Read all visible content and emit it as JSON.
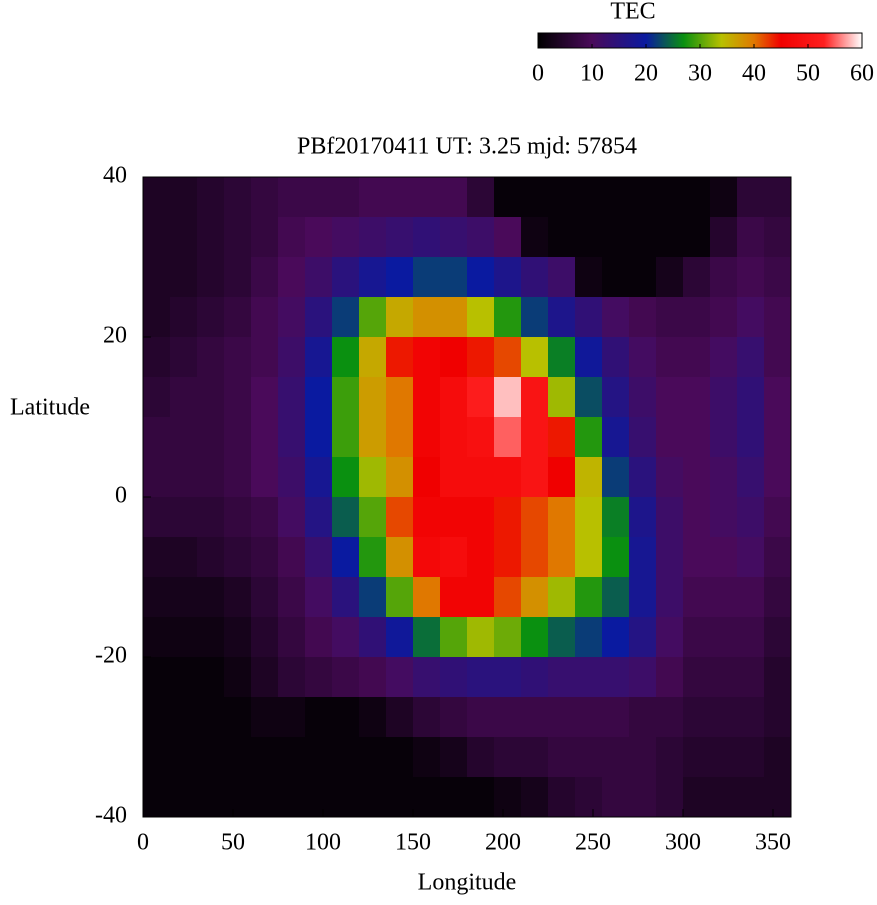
{
  "chart_data": {
    "type": "heatmap",
    "title": "PBf20170411  UT: 3.25  mjd: 57854",
    "xlabel": "Longitude",
    "ylabel": "Latitude",
    "xlim": [
      0,
      360
    ],
    "ylim": [
      -40,
      40
    ],
    "xticks": [
      0,
      50,
      100,
      150,
      200,
      250,
      300,
      350
    ],
    "yticks": [
      -40,
      -20,
      0,
      20,
      40
    ],
    "x": [
      7.5,
      22.5,
      37.5,
      52.5,
      67.5,
      82.5,
      97.5,
      112.5,
      127.5,
      142.5,
      157.5,
      172.5,
      187.5,
      202.5,
      217.5,
      232.5,
      247.5,
      262.5,
      277.5,
      292.5,
      307.5,
      322.5,
      337.5,
      352.5
    ],
    "y": [
      37.5,
      32.5,
      27.5,
      22.5,
      17.5,
      12.5,
      7.5,
      2.5,
      -2.5,
      -7.5,
      -12.5,
      -17.5,
      -22.5,
      -27.5,
      -32.5,
      -37.5
    ],
    "z": [
      [
        4,
        4,
        5,
        6,
        7,
        8,
        8,
        8,
        9,
        9,
        9,
        9,
        6,
        1,
        1,
        1,
        1,
        1,
        1,
        1,
        1,
        2,
        6,
        6
      ],
      [
        4,
        4,
        5,
        6,
        7,
        9,
        10,
        11,
        12,
        13,
        14,
        13,
        12,
        10,
        2,
        1,
        1,
        1,
        1,
        1,
        1,
        5,
        8,
        7
      ],
      [
        4,
        4,
        5,
        6,
        8,
        10,
        12,
        15,
        18,
        20,
        22,
        22,
        20,
        17,
        14,
        12,
        2,
        1,
        1,
        3,
        6,
        8,
        9,
        8
      ],
      [
        4,
        5,
        6,
        7,
        9,
        11,
        15,
        22,
        30,
        36,
        38,
        38,
        34,
        28,
        22,
        17,
        14,
        11,
        9,
        8,
        8,
        9,
        11,
        9
      ],
      [
        5,
        6,
        7,
        8,
        9,
        12,
        18,
        27,
        36,
        44,
        46,
        45,
        44,
        42,
        34,
        26,
        19,
        14,
        11,
        9,
        9,
        11,
        13,
        9
      ],
      [
        6,
        7,
        7,
        8,
        10,
        13,
        20,
        29,
        37,
        40,
        46,
        48,
        52,
        58,
        50,
        33,
        23,
        16,
        12,
        10,
        10,
        12,
        14,
        10
      ],
      [
        7,
        7,
        7,
        8,
        10,
        13,
        20,
        29,
        37,
        40,
        46,
        48,
        49,
        55,
        50,
        44,
        28,
        18,
        13,
        10,
        10,
        12,
        14,
        10
      ],
      [
        7,
        7,
        7,
        8,
        10,
        12,
        18,
        27,
        33,
        38,
        45,
        48,
        48,
        48,
        50,
        45,
        35,
        22,
        15,
        11,
        10,
        11,
        13,
        10
      ],
      [
        6,
        6,
        6,
        7,
        8,
        11,
        16,
        24,
        30,
        42,
        46,
        46,
        46,
        44,
        42,
        40,
        34,
        26,
        17,
        12,
        10,
        11,
        12,
        9
      ],
      [
        4,
        4,
        5,
        6,
        7,
        9,
        13,
        20,
        28,
        38,
        47,
        48,
        46,
        44,
        42,
        40,
        34,
        27,
        18,
        12,
        10,
        10,
        11,
        8
      ],
      [
        3,
        3,
        3,
        4,
        6,
        8,
        11,
        15,
        22,
        30,
        40,
        46,
        46,
        42,
        38,
        33,
        28,
        24,
        18,
        12,
        9,
        9,
        9,
        7
      ],
      [
        2,
        2,
        2,
        3,
        5,
        7,
        9,
        11,
        14,
        19,
        25,
        30,
        33,
        31,
        27,
        24,
        22,
        20,
        16,
        11,
        8,
        8,
        8,
        6
      ],
      [
        1,
        1,
        1,
        2,
        4,
        6,
        7,
        8,
        9,
        11,
        13,
        14,
        15,
        15,
        14,
        13,
        13,
        13,
        12,
        9,
        7,
        7,
        7,
        5
      ],
      [
        1,
        1,
        1,
        1,
        2,
        2,
        1,
        1,
        2,
        4,
        6,
        7,
        8,
        8,
        8,
        8,
        8,
        8,
        7,
        7,
        6,
        6,
        6,
        5
      ],
      [
        1,
        1,
        1,
        1,
        1,
        1,
        1,
        1,
        1,
        1,
        2,
        3,
        5,
        6,
        6,
        7,
        7,
        7,
        7,
        6,
        5,
        5,
        5,
        4
      ],
      [
        1,
        1,
        1,
        1,
        1,
        1,
        1,
        1,
        1,
        1,
        1,
        1,
        1,
        2,
        3,
        5,
        6,
        7,
        7,
        6,
        4,
        4,
        4,
        4
      ]
    ],
    "colorbar": {
      "title": "TEC",
      "lim": [
        0,
        60
      ],
      "ticks": [
        0,
        10,
        20,
        30,
        40,
        50,
        60
      ],
      "colorscale": [
        [
          0,
          "#000000"
        ],
        [
          10,
          "#4a0a5a"
        ],
        [
          20,
          "#0a1aa0"
        ],
        [
          27,
          "#0a9010"
        ],
        [
          34,
          "#b8c000"
        ],
        [
          40,
          "#e07800"
        ],
        [
          45,
          "#f00000"
        ],
        [
          53,
          "#ff2020"
        ],
        [
          60,
          "#ffffff"
        ]
      ]
    }
  }
}
